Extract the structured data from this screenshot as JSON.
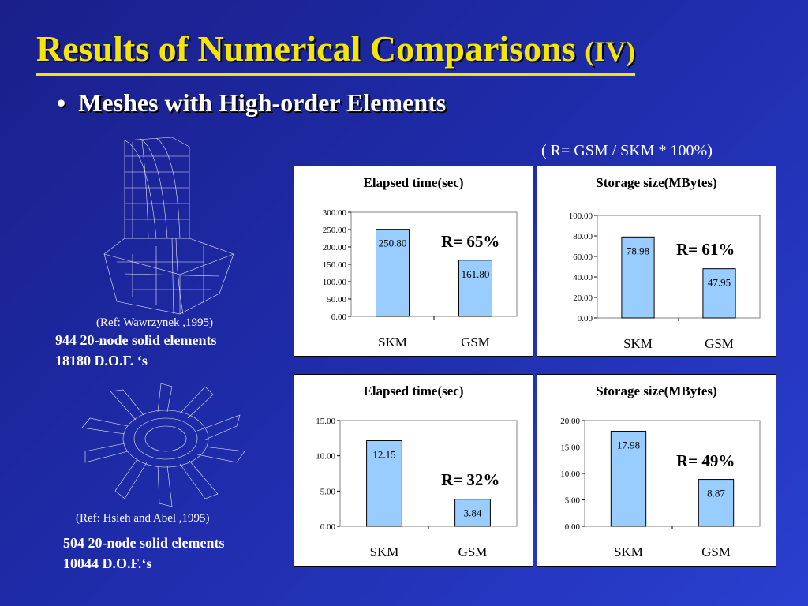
{
  "slide": {
    "title": "Results of Numerical Comparisons",
    "title_suffix": "(IV)",
    "bullet_marker": "•",
    "bullet": "Meshes with High-order Elements",
    "formula": "( R= GSM / SKM * 100%)",
    "ref1": "(Ref: Wawrzynek ,1995)",
    "mesh1_line1": "944   20-node solid elements",
    "mesh1_line2": "18180 D.O.F. ‘s",
    "ref2": "(Ref: Hsieh and Abel ,1995)",
    "mesh2_line1": "504   20-node solid elements",
    "mesh2_line2": "10044 D.O.F.‘s"
  },
  "colors": {
    "bar_fill": "#99ccff",
    "title": "#f5e600"
  },
  "chart_data": [
    {
      "type": "bar",
      "title": "Elapsed time(sec)",
      "categories": [
        "SKM",
        "GSM"
      ],
      "values": [
        250.8,
        161.8
      ],
      "value_labels": [
        "250.80",
        "161.80"
      ],
      "ylim": [
        0,
        300
      ],
      "yticks": [
        "0.00",
        "50.00",
        "100.00",
        "150.00",
        "200.00",
        "250.00",
        "300.00"
      ],
      "annotation": "R= 65%"
    },
    {
      "type": "bar",
      "title": "Storage size(MBytes)",
      "categories": [
        "SKM",
        "GSM"
      ],
      "values": [
        78.98,
        47.95
      ],
      "value_labels": [
        "78.98",
        "47.95"
      ],
      "ylim": [
        0,
        100
      ],
      "yticks": [
        "0.00",
        "20.00",
        "40.00",
        "60.00",
        "80.00",
        "100.00"
      ],
      "annotation": "R= 61%"
    },
    {
      "type": "bar",
      "title": "Elapsed time(sec)",
      "categories": [
        "SKM",
        "GSM"
      ],
      "values": [
        12.15,
        3.84
      ],
      "value_labels": [
        "12.15",
        "3.84"
      ],
      "ylim": [
        0,
        15
      ],
      "yticks": [
        "0.00",
        "5.00",
        "10.00",
        "15.00"
      ],
      "annotation": "R= 32%"
    },
    {
      "type": "bar",
      "title": "Storage size(MBytes)",
      "categories": [
        "SKM",
        "GSM"
      ],
      "values": [
        17.98,
        8.87
      ],
      "value_labels": [
        "17.98",
        "8.87"
      ],
      "ylim": [
        0,
        20
      ],
      "yticks": [
        "0.00",
        "5.00",
        "10.00",
        "15.00",
        "20.00"
      ],
      "annotation": "R= 49%"
    }
  ]
}
